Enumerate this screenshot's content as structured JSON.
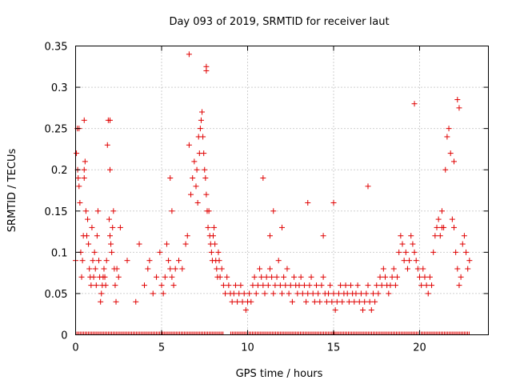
{
  "chart_data": {
    "type": "scatter",
    "title": "Day 093 of 2019, SRMTID for receiver laut",
    "xlabel": "GPS time / hours",
    "ylabel": "SRMTID / TECUs",
    "xlim": [
      0,
      24
    ],
    "ylim": [
      0,
      0.35
    ],
    "xticks": [
      0,
      5,
      10,
      15,
      20
    ],
    "xtick_labels": [
      "0",
      "5",
      "10",
      "15",
      "20"
    ],
    "yticks": [
      0,
      0.05,
      0.1,
      0.15,
      0.2,
      0.25,
      0.3,
      0.35
    ],
    "ytick_labels": [
      "0",
      "0.05",
      "0.1",
      "0.15",
      "0.2",
      "0.25",
      "0.3",
      "0.35"
    ],
    "grid": true,
    "marker": "+",
    "color": "#e00000",
    "series": [
      {
        "name": "SRMTID",
        "x": [
          0.0,
          0.05,
          0.1,
          0.12,
          0.15,
          0.2,
          0.25,
          0.3,
          0.35,
          0.4,
          0.45,
          0.5,
          0.5,
          0.55,
          0.6,
          0.65,
          0.7,
          0.75,
          0.8,
          0.85,
          0.9,
          0.95,
          1.0,
          1.05,
          1.1,
          1.15,
          1.2,
          1.25,
          1.3,
          1.35,
          1.4,
          1.45,
          1.5,
          1.55,
          1.6,
          1.65,
          1.7,
          1.75,
          1.8,
          1.85,
          1.9,
          1.95,
          2.0,
          2.05,
          2.1,
          2.15,
          2.2,
          2.25,
          2.3,
          2.35,
          2.4,
          2.5,
          2.6,
          3.0,
          3.5,
          3.7,
          4.0,
          4.2,
          4.3,
          4.5,
          4.7,
          4.9,
          5.0,
          5.1,
          5.2,
          5.3,
          5.4,
          5.5,
          5.6,
          5.7,
          5.8,
          6.0,
          6.2,
          6.4,
          6.5,
          6.6,
          6.7,
          6.8,
          6.9,
          7.0,
          7.05,
          7.1,
          7.15,
          7.2,
          7.25,
          7.3,
          7.35,
          7.4,
          7.45,
          7.5,
          7.55,
          7.6,
          7.65,
          7.7,
          7.75,
          7.8,
          7.85,
          7.9,
          7.95,
          8.0,
          8.05,
          8.1,
          8.15,
          8.2,
          8.25,
          8.3,
          8.35,
          8.4,
          8.5,
          8.6,
          8.7,
          8.8,
          8.9,
          9.0,
          9.1,
          9.2,
          9.3,
          9.4,
          9.5,
          9.6,
          9.7,
          9.8,
          9.9,
          10.0,
          10.1,
          10.2,
          10.3,
          10.4,
          10.5,
          10.6,
          10.7,
          10.8,
          10.9,
          11.0,
          11.1,
          11.2,
          11.3,
          11.4,
          11.5,
          11.6,
          11.7,
          11.8,
          11.9,
          12.0,
          12.1,
          12.2,
          12.3,
          12.4,
          12.5,
          12.6,
          12.7,
          12.8,
          12.9,
          13.0,
          13.1,
          13.2,
          13.3,
          13.4,
          13.5,
          13.6,
          13.7,
          13.8,
          13.9,
          14.0,
          14.1,
          14.2,
          14.3,
          14.4,
          14.5,
          14.6,
          14.7,
          14.8,
          14.9,
          15.0,
          15.1,
          15.2,
          15.3,
          15.4,
          15.5,
          15.6,
          15.7,
          15.8,
          15.9,
          16.0,
          16.1,
          16.2,
          16.3,
          16.4,
          16.5,
          16.6,
          16.7,
          16.8,
          16.9,
          17.0,
          17.1,
          17.2,
          17.3,
          17.4,
          17.5,
          17.6,
          17.7,
          17.8,
          17.9,
          18.0,
          18.1,
          18.2,
          18.3,
          18.4,
          18.5,
          18.6,
          18.7,
          18.8,
          18.9,
          19.0,
          19.1,
          19.2,
          19.3,
          19.4,
          19.5,
          19.6,
          19.7,
          19.8,
          19.9,
          20.0,
          20.1,
          20.2,
          20.3,
          20.4,
          20.5,
          20.6,
          20.7,
          20.8,
          20.9,
          21.0,
          21.1,
          21.2,
          21.3,
          21.4,
          21.5,
          21.6,
          21.7,
          21.8,
          21.9,
          22.0,
          22.1,
          22.2,
          22.3,
          22.4,
          22.5,
          22.6,
          22.7,
          22.8,
          22.9,
          6.6,
          7.6,
          7.6,
          19.7,
          10.9,
          11.3,
          15.0,
          17.0,
          11.5,
          12.0,
          5.6,
          5.5,
          13.5,
          14.4,
          0.2,
          0.5,
          2.0,
          2.0,
          22.2,
          22.3,
          21.3,
          22.0
        ],
        "y": [
          0.09,
          0.22,
          0.25,
          0.2,
          0.19,
          0.18,
          0.16,
          0.1,
          0.07,
          0.09,
          0.12,
          0.19,
          0.26,
          0.21,
          0.15,
          0.12,
          0.14,
          0.11,
          0.08,
          0.07,
          0.06,
          0.13,
          0.09,
          0.07,
          0.1,
          0.08,
          0.06,
          0.12,
          0.15,
          0.09,
          0.07,
          0.04,
          0.05,
          0.06,
          0.07,
          0.08,
          0.07,
          0.06,
          0.09,
          0.23,
          0.26,
          0.14,
          0.12,
          0.11,
          0.1,
          0.13,
          0.15,
          0.08,
          0.06,
          0.04,
          0.08,
          0.07,
          0.13,
          0.09,
          0.04,
          0.11,
          0.06,
          0.08,
          0.09,
          0.05,
          0.07,
          0.1,
          0.06,
          0.05,
          0.07,
          0.11,
          0.09,
          0.08,
          0.07,
          0.06,
          0.08,
          0.09,
          0.08,
          0.11,
          0.12,
          0.23,
          0.17,
          0.19,
          0.21,
          0.18,
          0.2,
          0.16,
          0.24,
          0.22,
          0.25,
          0.26,
          0.27,
          0.24,
          0.22,
          0.2,
          0.19,
          0.17,
          0.15,
          0.13,
          0.15,
          0.12,
          0.11,
          0.1,
          0.09,
          0.12,
          0.13,
          0.11,
          0.09,
          0.08,
          0.07,
          0.1,
          0.09,
          0.07,
          0.08,
          0.06,
          0.05,
          0.07,
          0.06,
          0.05,
          0.04,
          0.05,
          0.06,
          0.04,
          0.05,
          0.06,
          0.04,
          0.05,
          0.03,
          0.04,
          0.05,
          0.04,
          0.06,
          0.07,
          0.05,
          0.06,
          0.08,
          0.07,
          0.06,
          0.05,
          0.07,
          0.06,
          0.08,
          0.07,
          0.05,
          0.06,
          0.07,
          0.09,
          0.06,
          0.05,
          0.07,
          0.06,
          0.08,
          0.05,
          0.06,
          0.04,
          0.07,
          0.06,
          0.05,
          0.06,
          0.07,
          0.05,
          0.06,
          0.04,
          0.05,
          0.06,
          0.07,
          0.05,
          0.04,
          0.06,
          0.05,
          0.04,
          0.06,
          0.07,
          0.05,
          0.04,
          0.05,
          0.06,
          0.04,
          0.05,
          0.03,
          0.04,
          0.05,
          0.06,
          0.04,
          0.05,
          0.06,
          0.05,
          0.04,
          0.06,
          0.05,
          0.04,
          0.05,
          0.06,
          0.04,
          0.05,
          0.03,
          0.04,
          0.05,
          0.06,
          0.04,
          0.03,
          0.05,
          0.04,
          0.06,
          0.05,
          0.07,
          0.06,
          0.08,
          0.07,
          0.06,
          0.05,
          0.06,
          0.07,
          0.08,
          0.06,
          0.07,
          0.1,
          0.12,
          0.11,
          0.09,
          0.1,
          0.08,
          0.09,
          0.12,
          0.11,
          0.1,
          0.09,
          0.08,
          0.07,
          0.06,
          0.08,
          0.07,
          0.06,
          0.05,
          0.07,
          0.06,
          0.1,
          0.12,
          0.13,
          0.14,
          0.12,
          0.15,
          0.13,
          0.2,
          0.24,
          0.25,
          0.22,
          0.14,
          0.13,
          0.1,
          0.08,
          0.06,
          0.07,
          0.11,
          0.12,
          0.1,
          0.08,
          0.09,
          0.34,
          0.32,
          0.325,
          0.28,
          0.19,
          0.12,
          0.16,
          0.18,
          0.15,
          0.13,
          0.15,
          0.19,
          0.16,
          0.12,
          0.25,
          0.2,
          0.2,
          0.26,
          0.285,
          0.275,
          0.13,
          0.21
        ]
      }
    ]
  }
}
